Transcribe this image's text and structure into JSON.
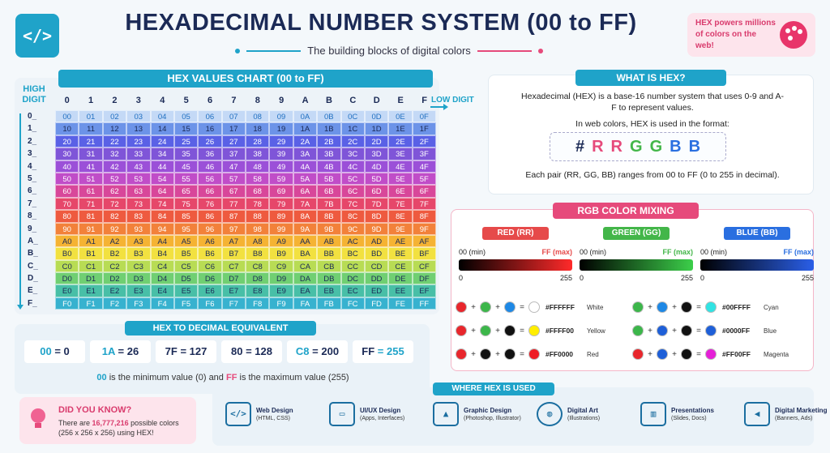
{
  "header": {
    "logo": "</>",
    "title": "HEXADECIMAL NUMBER SYSTEM (00 to FF)",
    "subtitle": "The building blocks of digital colors",
    "promo": "HEX powers millions of colors on the web!"
  },
  "chart": {
    "title": "HEX VALUES CHART (00 to FF)",
    "high_digit": "HIGH DIGIT",
    "low_digit": "LOW DIGIT",
    "digits": [
      "0",
      "1",
      "2",
      "3",
      "4",
      "5",
      "6",
      "7",
      "8",
      "9",
      "A",
      "B",
      "C",
      "D",
      "E",
      "F"
    ],
    "row_labels": [
      "0_",
      "1_",
      "2_",
      "3_",
      "4_",
      "5_",
      "6_",
      "7_",
      "8_",
      "9_",
      "A_",
      "B_",
      "C_",
      "D_",
      "E_",
      "F_"
    ],
    "row_colors": [
      "#c4d9f6",
      "#6c93e8",
      "#5a61e6",
      "#7f55d8",
      "#9b50d8",
      "#c04dc8",
      "#d8479a",
      "#e6476a",
      "#ee5a3f",
      "#f2813a",
      "#f5b333",
      "#f2e140",
      "#b8dc54",
      "#70cf72",
      "#48bfa7",
      "#37b2cf"
    ],
    "row_text_colors": [
      "#1f6fc1",
      "#1b2a56",
      "#ffffff",
      "#ffffff",
      "#ffffff",
      "#ffffff",
      "#ffffff",
      "#ffffff",
      "#ffffff",
      "#ffffff",
      "#1b2a56",
      "#1b2a56",
      "#1b2a56",
      "#1b2a56",
      "#1b2a56",
      "#ffffff"
    ]
  },
  "hex_to_decimal": {
    "title": "HEX TO DECIMAL EQUIVALENT",
    "items": [
      {
        "hex": "00",
        "dec": "= 0"
      },
      {
        "hex": "1A",
        "dec": "= 26"
      },
      {
        "hex": "7F",
        "dec": "= 127"
      },
      {
        "hex": "80",
        "dec": "= 128"
      },
      {
        "hex": "C8",
        "dec": "= 200"
      },
      {
        "hex": "FF",
        "dec": "= 255"
      }
    ],
    "note_min": "00",
    "note_mid": " is the minimum value (0) and ",
    "note_max": "FF",
    "note_end": " is the maximum value (255)"
  },
  "did_you_know": {
    "title": "DID YOU KNOW?",
    "pre": "There are ",
    "count": "16,777,216",
    "post": " possible colors (256 x 256 x 256) using HEX!"
  },
  "what_is_hex": {
    "title": "WHAT IS HEX?",
    "desc": "Hexadecimal (HEX) is a base-16 number system that uses 0-9 and A-F to represent values.",
    "format_label": "In web colors, HEX is used in the format:",
    "format": [
      "#",
      "R",
      "R",
      "G",
      "G",
      "B",
      "B"
    ],
    "format_colors": [
      "#1b2a56",
      "#e64a7b",
      "#e64a7b",
      "#43b649",
      "#43b649",
      "#2a6fe0",
      "#2a6fe0"
    ],
    "pair_note": "Each pair (RR, GG, BB) ranges from 00 to FF (0 to 255 in decimal)."
  },
  "rgb_mixing": {
    "title": "RGB COLOR MIXING",
    "channels": [
      {
        "label": "RED (RR)",
        "color": "#e64a4a",
        "min": "00 (min)",
        "max": "FF (max)",
        "max_color": "#e64a4a",
        "lo": "0",
        "hi": "255",
        "gradient": "linear-gradient(90deg,#000,#ff2a2a)"
      },
      {
        "label": "GREEN (GG)",
        "color": "#43b649",
        "min": "00 (min)",
        "max": "FF (max)",
        "max_color": "#43b649",
        "lo": "0",
        "hi": "255",
        "gradient": "linear-gradient(90deg,#000,#3ccf4a)"
      },
      {
        "label": "BLUE (BB)",
        "color": "#2a6fe0",
        "min": "00 (min)",
        "max": "FF (max)",
        "max_color": "#2a6fe0",
        "lo": "0",
        "hi": "255",
        "gradient": "linear-gradient(90deg,#000,#2a5fe8)"
      }
    ],
    "mixes": [
      {
        "a": "#e8262c",
        "b": "#3cb64a",
        "c": "#1e88e5",
        "result": "#ffffff",
        "code": "#FFFFFF",
        "name": "White"
      },
      {
        "a": "#e8262c",
        "b": "#3cb64a",
        "c": "#111111",
        "result": "#ffee00",
        "code": "#FFFF00",
        "name": "Yellow"
      },
      {
        "a": "#e8262c",
        "b": "#111111",
        "c": "#111111",
        "result": "#ee1c24",
        "code": "#FF0000",
        "name": "Red"
      },
      {
        "a": "#3cb64a",
        "b": "#1e88e5",
        "c": "#111111",
        "result": "#31e3e3",
        "code": "#00FFFF",
        "name": "Cyan"
      },
      {
        "a": "#3cb64a",
        "b": "#1e5fd8",
        "c": "#111111",
        "result": "#1e5fd8",
        "code": "#0000FF",
        "name": "Blue"
      },
      {
        "a": "#e8262c",
        "b": "#1e5fd8",
        "c": "#111111",
        "result": "#e520d7",
        "code": "#FF00FF",
        "name": "Magenta"
      }
    ],
    "plus": "+",
    "equals": "="
  },
  "where_used": {
    "title": "WHERE HEX IS USED",
    "items": [
      {
        "title": "Web Design",
        "sub": "(HTML, CSS)",
        "icon": "code-window-icon",
        "glyph": "</>"
      },
      {
        "title": "UI/UX Design",
        "sub": "(Apps, Interfaces)",
        "icon": "monitor-layout-icon",
        "glyph": "▭"
      },
      {
        "title": "Graphic Design",
        "sub": "(Photoshop, Illustrator)",
        "icon": "image-icon",
        "glyph": "▲"
      },
      {
        "title": "Digital Art",
        "sub": "(Illustrations)",
        "icon": "palette-icon",
        "glyph": "◍"
      },
      {
        "title": "Presentations",
        "sub": "(Slides, Docs)",
        "icon": "presentation-board-icon",
        "glyph": "▥"
      },
      {
        "title": "Digital Marketing",
        "sub": "(Banners, Ads)",
        "icon": "megaphone-icon",
        "glyph": "◀"
      }
    ]
  }
}
